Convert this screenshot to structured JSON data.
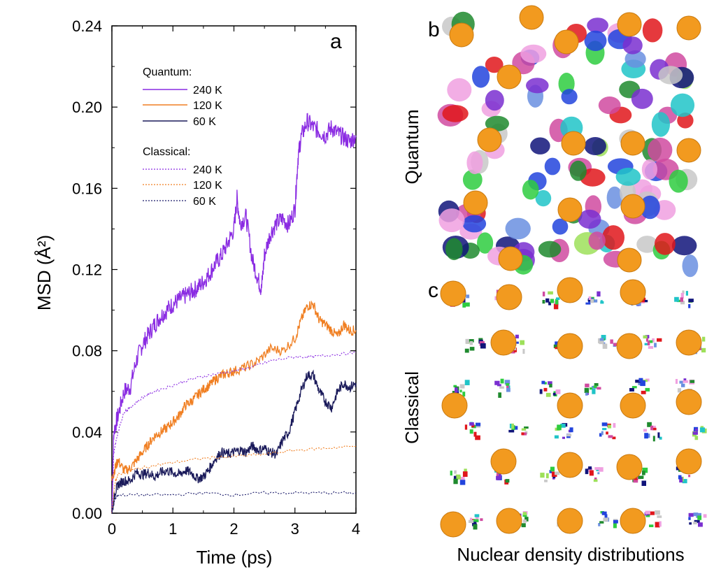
{
  "colors": {
    "q240": "#8a2be2",
    "q120": "#f07f22",
    "q60": "#1a1a5a",
    "c240": "#8a2be2",
    "c120": "#f07f22",
    "c60": "#1a1a6a",
    "sphere": "#f29a1f"
  },
  "chart_data": {
    "type": "line",
    "panel_label": "a",
    "xlabel": "Time (ps)",
    "ylabel": "MSD (Å²)",
    "xlim": [
      0,
      4
    ],
    "ylim": [
      0,
      0.24
    ],
    "x_ticks": [
      "0",
      "1",
      "2",
      "3",
      "4"
    ],
    "y_ticks": [
      "0.00",
      "0.04",
      "0.08",
      "0.12",
      "0.16",
      "0.20",
      "0.24"
    ],
    "legend": {
      "group1_title": "Quantum:",
      "group2_title": "Classical:",
      "entries": [
        {
          "label": "240 K",
          "series": 0
        },
        {
          "label": "120 K",
          "series": 1
        },
        {
          "label": "60 K",
          "series": 2
        },
        {
          "label": "240 K",
          "series": 3
        },
        {
          "label": "120 K",
          "series": 4
        },
        {
          "label": "60  K",
          "series": 5
        }
      ]
    },
    "series": [
      {
        "group": "Quantum",
        "temperature": "240 K",
        "style": "solid",
        "color": "#8a2be2",
        "points": [
          [
            0,
            0.0
          ],
          [
            0.03,
            0.04
          ],
          [
            0.1,
            0.048
          ],
          [
            0.2,
            0.06
          ],
          [
            0.3,
            0.062
          ],
          [
            0.4,
            0.075
          ],
          [
            0.5,
            0.083
          ],
          [
            0.6,
            0.088
          ],
          [
            0.7,
            0.093
          ],
          [
            0.8,
            0.097
          ],
          [
            0.9,
            0.1
          ],
          [
            1.0,
            0.103
          ],
          [
            1.1,
            0.105
          ],
          [
            1.2,
            0.107
          ],
          [
            1.3,
            0.109
          ],
          [
            1.4,
            0.111
          ],
          [
            1.5,
            0.114
          ],
          [
            1.6,
            0.118
          ],
          [
            1.7,
            0.123
          ],
          [
            1.8,
            0.127
          ],
          [
            1.9,
            0.133
          ],
          [
            2.0,
            0.14
          ],
          [
            2.05,
            0.155
          ],
          [
            2.1,
            0.143
          ],
          [
            2.2,
            0.146
          ],
          [
            2.3,
            0.125
          ],
          [
            2.4,
            0.115
          ],
          [
            2.45,
            0.11
          ],
          [
            2.5,
            0.127
          ],
          [
            2.6,
            0.138
          ],
          [
            2.7,
            0.143
          ],
          [
            2.8,
            0.145
          ],
          [
            2.9,
            0.142
          ],
          [
            3.0,
            0.15
          ],
          [
            3.05,
            0.175
          ],
          [
            3.1,
            0.185
          ],
          [
            3.2,
            0.193
          ],
          [
            3.3,
            0.19
          ],
          [
            3.4,
            0.188
          ],
          [
            3.5,
            0.186
          ],
          [
            3.6,
            0.19
          ],
          [
            3.7,
            0.187
          ],
          [
            3.8,
            0.185
          ],
          [
            3.9,
            0.183
          ],
          [
            4.0,
            0.186
          ]
        ]
      },
      {
        "group": "Quantum",
        "temperature": "120 K",
        "style": "solid",
        "color": "#f07f22",
        "points": [
          [
            0,
            0.016
          ],
          [
            0.05,
            0.022
          ],
          [
            0.1,
            0.026
          ],
          [
            0.2,
            0.021
          ],
          [
            0.3,
            0.022
          ],
          [
            0.4,
            0.026
          ],
          [
            0.5,
            0.03
          ],
          [
            0.6,
            0.034
          ],
          [
            0.7,
            0.038
          ],
          [
            0.8,
            0.04
          ],
          [
            0.9,
            0.042
          ],
          [
            1.0,
            0.045
          ],
          [
            1.1,
            0.048
          ],
          [
            1.2,
            0.053
          ],
          [
            1.3,
            0.055
          ],
          [
            1.4,
            0.058
          ],
          [
            1.5,
            0.061
          ],
          [
            1.6,
            0.063
          ],
          [
            1.7,
            0.066
          ],
          [
            1.8,
            0.068
          ],
          [
            1.9,
            0.069
          ],
          [
            2.0,
            0.07
          ],
          [
            2.2,
            0.072
          ],
          [
            2.4,
            0.075
          ],
          [
            2.6,
            0.081
          ],
          [
            2.8,
            0.08
          ],
          [
            3.0,
            0.086
          ],
          [
            3.1,
            0.095
          ],
          [
            3.2,
            0.102
          ],
          [
            3.3,
            0.103
          ],
          [
            3.4,
            0.095
          ],
          [
            3.5,
            0.093
          ],
          [
            3.6,
            0.09
          ],
          [
            3.7,
            0.087
          ],
          [
            3.8,
            0.093
          ],
          [
            3.9,
            0.09
          ],
          [
            4.0,
            0.09
          ]
        ]
      },
      {
        "group": "Quantum",
        "temperature": "60 K",
        "style": "solid",
        "color": "#1a1a5a",
        "points": [
          [
            0,
            0.0
          ],
          [
            0.05,
            0.01
          ],
          [
            0.1,
            0.014
          ],
          [
            0.2,
            0.016
          ],
          [
            0.3,
            0.016
          ],
          [
            0.4,
            0.02
          ],
          [
            0.5,
            0.019
          ],
          [
            0.6,
            0.02
          ],
          [
            0.7,
            0.018
          ],
          [
            0.8,
            0.02
          ],
          [
            0.9,
            0.021
          ],
          [
            1.0,
            0.02
          ],
          [
            1.1,
            0.019
          ],
          [
            1.2,
            0.021
          ],
          [
            1.3,
            0.02
          ],
          [
            1.4,
            0.017
          ],
          [
            1.5,
            0.018
          ],
          [
            1.6,
            0.022
          ],
          [
            1.7,
            0.027
          ],
          [
            1.8,
            0.03
          ],
          [
            1.9,
            0.029
          ],
          [
            2.0,
            0.03
          ],
          [
            2.1,
            0.031
          ],
          [
            2.2,
            0.03
          ],
          [
            2.3,
            0.033
          ],
          [
            2.4,
            0.031
          ],
          [
            2.5,
            0.032
          ],
          [
            2.6,
            0.03
          ],
          [
            2.7,
            0.029
          ],
          [
            2.8,
            0.036
          ],
          [
            2.9,
            0.04
          ],
          [
            3.0,
            0.05
          ],
          [
            3.1,
            0.06
          ],
          [
            3.2,
            0.068
          ],
          [
            3.3,
            0.068
          ],
          [
            3.4,
            0.06
          ],
          [
            3.5,
            0.055
          ],
          [
            3.6,
            0.052
          ],
          [
            3.7,
            0.06
          ],
          [
            3.8,
            0.064
          ],
          [
            3.9,
            0.062
          ],
          [
            4.0,
            0.064
          ]
        ]
      },
      {
        "group": "Classical",
        "temperature": "240 K",
        "style": "dashed",
        "color": "#8a2be2",
        "points": [
          [
            0,
            0.0
          ],
          [
            0.03,
            0.03
          ],
          [
            0.1,
            0.04
          ],
          [
            0.2,
            0.05
          ],
          [
            0.3,
            0.052
          ],
          [
            0.5,
            0.057
          ],
          [
            0.7,
            0.06
          ],
          [
            1.0,
            0.063
          ],
          [
            1.3,
            0.066
          ],
          [
            1.6,
            0.068
          ],
          [
            2.0,
            0.07
          ],
          [
            2.3,
            0.072
          ],
          [
            2.6,
            0.075
          ],
          [
            3.0,
            0.077
          ],
          [
            3.3,
            0.077
          ],
          [
            3.6,
            0.078
          ],
          [
            4.0,
            0.079
          ]
        ]
      },
      {
        "group": "Classical",
        "temperature": "120 K",
        "style": "dashed",
        "color": "#f07f22",
        "points": [
          [
            0,
            0.0
          ],
          [
            0.05,
            0.015
          ],
          [
            0.1,
            0.019
          ],
          [
            0.3,
            0.021
          ],
          [
            0.6,
            0.023
          ],
          [
            1.0,
            0.025
          ],
          [
            1.5,
            0.027
          ],
          [
            2.0,
            0.028
          ],
          [
            2.5,
            0.029
          ],
          [
            3.0,
            0.031
          ],
          [
            3.5,
            0.032
          ],
          [
            4.0,
            0.033
          ]
        ]
      },
      {
        "group": "Classical",
        "temperature": "60 K",
        "style": "dashed",
        "color": "#1a1a6a",
        "points": [
          [
            0,
            0.0
          ],
          [
            0.05,
            0.007
          ],
          [
            0.1,
            0.009
          ],
          [
            0.5,
            0.009
          ],
          [
            1.0,
            0.009
          ],
          [
            1.5,
            0.01
          ],
          [
            2.0,
            0.009
          ],
          [
            2.5,
            0.01
          ],
          [
            3.0,
            0.01
          ],
          [
            3.5,
            0.01
          ],
          [
            4.0,
            0.01
          ]
        ]
      }
    ]
  },
  "panel_b": {
    "letter": "b",
    "side_label": "Quantum"
  },
  "panel_c": {
    "letter": "c",
    "side_label": "Classical"
  },
  "bottom_caption": "Nuclear density distributions"
}
